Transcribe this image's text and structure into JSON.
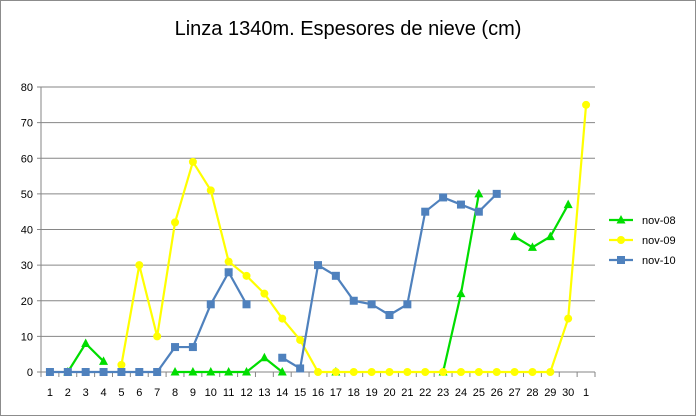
{
  "chart_data": {
    "type": "line",
    "title": "Linza 1340m. Espesores de nieve (cm)",
    "xlabel": "",
    "ylabel": "",
    "ylim": [
      0,
      80
    ],
    "yticks": [
      0,
      10,
      20,
      30,
      40,
      50,
      60,
      70,
      80
    ],
    "grid": true,
    "legend_position": "right",
    "categories": [
      "1",
      "2",
      "3",
      "4",
      "5",
      "6",
      "7",
      "8",
      "9",
      "10",
      "11",
      "12",
      "13",
      "14",
      "15",
      "16",
      "17",
      "18",
      "19",
      "20",
      "21",
      "22",
      "23",
      "24",
      "25",
      "26",
      "27",
      "28",
      "29",
      "30",
      "1"
    ],
    "series": [
      {
        "name": "nov-08",
        "color": "#00dd00",
        "marker": "triangle",
        "values": [
          null,
          0,
          8,
          3,
          null,
          null,
          null,
          0,
          0,
          0,
          0,
          0,
          4,
          0,
          null,
          null,
          0,
          null,
          null,
          null,
          null,
          null,
          0,
          22,
          50,
          null,
          38,
          35,
          38,
          47,
          null
        ]
      },
      {
        "name": "nov-09",
        "color": "#ffff00",
        "marker": "circle",
        "values": [
          null,
          null,
          null,
          null,
          2,
          30,
          10,
          42,
          59,
          51,
          31,
          27,
          22,
          15,
          9,
          0,
          0,
          0,
          0,
          0,
          0,
          0,
          0,
          0,
          0,
          0,
          0,
          0,
          0,
          15,
          75
        ]
      },
      {
        "name": "nov-10",
        "color": "#4f81bd",
        "marker": "square",
        "values": [
          0,
          0,
          0,
          0,
          0,
          0,
          0,
          7,
          7,
          19,
          28,
          19,
          null,
          4,
          1,
          30,
          27,
          20,
          19,
          16,
          19,
          45,
          49,
          47,
          45,
          50,
          null,
          null,
          null,
          null,
          null
        ]
      }
    ]
  }
}
